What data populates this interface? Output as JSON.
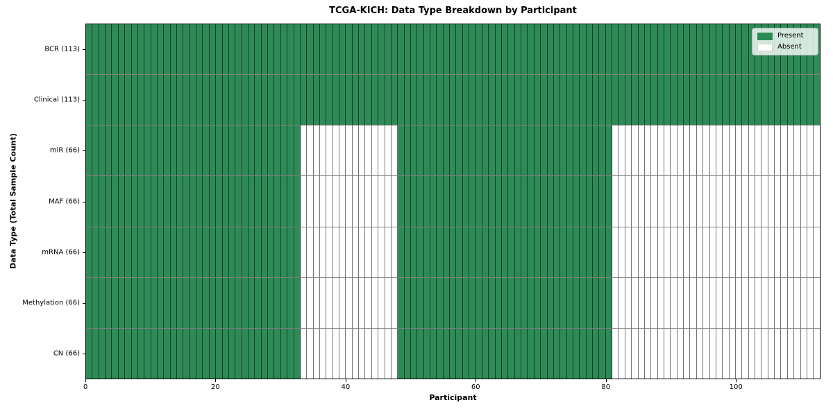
{
  "chart_data": {
    "type": "heatmap",
    "title": "TCGA-KICH: Data Type Breakdown by Participant",
    "xlabel": "Participant",
    "ylabel": "Data Type (Total Sample Count)",
    "n_participants": 113,
    "x_ticks": [
      0,
      20,
      40,
      60,
      80,
      100
    ],
    "colors": {
      "present": "#2e8b57",
      "absent": "#ffffff"
    },
    "legend": [
      {
        "label": "Present",
        "key": "present"
      },
      {
        "label": "Absent",
        "key": "absent"
      }
    ],
    "legend_position": "upper right",
    "grid": "cell-edges",
    "rows": [
      {
        "label": "BCR (113)",
        "data_type": "BCR",
        "total_samples": 113,
        "present_ranges": [
          [
            0,
            113
          ]
        ]
      },
      {
        "label": "Clinical (113)",
        "data_type": "Clinical",
        "total_samples": 113,
        "present_ranges": [
          [
            0,
            113
          ]
        ]
      },
      {
        "label": "miR (66)",
        "data_type": "miR",
        "total_samples": 66,
        "present_ranges": [
          [
            0,
            33
          ],
          [
            48,
            81
          ]
        ]
      },
      {
        "label": "MAF (66)",
        "data_type": "MAF",
        "total_samples": 66,
        "present_ranges": [
          [
            0,
            33
          ],
          [
            48,
            81
          ]
        ]
      },
      {
        "label": "mRNA (66)",
        "data_type": "mRNA",
        "total_samples": 66,
        "present_ranges": [
          [
            0,
            33
          ],
          [
            48,
            81
          ]
        ]
      },
      {
        "label": "Methylation (66)",
        "data_type": "Methylation",
        "total_samples": 66,
        "present_ranges": [
          [
            0,
            33
          ],
          [
            48,
            81
          ]
        ]
      },
      {
        "label": "CN (66)",
        "data_type": "CN",
        "total_samples": 66,
        "present_ranges": [
          [
            0,
            33
          ],
          [
            48,
            81
          ]
        ]
      }
    ]
  }
}
